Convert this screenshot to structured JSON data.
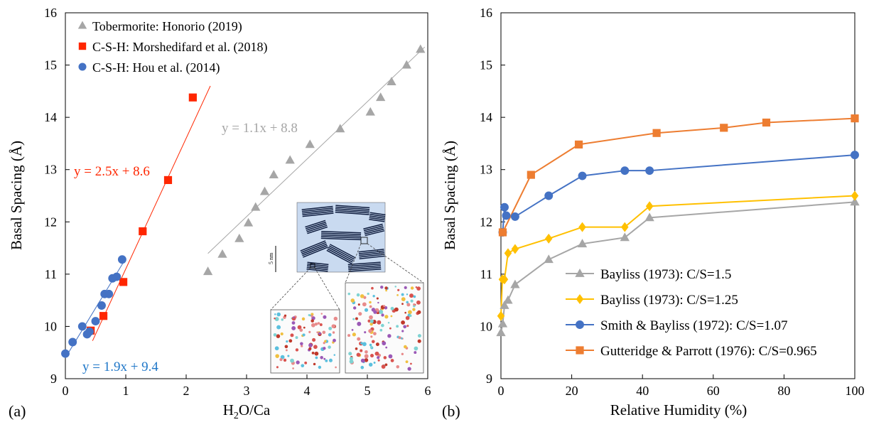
{
  "chart_data": [
    {
      "panel_label": "(a)",
      "type": "scatter",
      "xlabel_main": "H",
      "xlabel_sub": "2",
      "xlabel_rest": "O/Ca",
      "ylabel": "Basal Spacing (Å)",
      "xlim": [
        0,
        6
      ],
      "ylim": [
        9,
        16
      ],
      "xticks": [
        0,
        1,
        2,
        3,
        4,
        5,
        6
      ],
      "yticks": [
        9,
        10,
        11,
        12,
        13,
        14,
        15,
        16
      ],
      "grid": false,
      "legend_position": "top-left",
      "series": [
        {
          "name": "Tobermorite: Honorio (2019)",
          "marker": "triangle",
          "color": "#a6a6a6",
          "x": [
            2.36,
            2.6,
            2.88,
            3.03,
            3.15,
            3.3,
            3.45,
            3.72,
            4.05,
            4.55,
            5.05,
            5.22,
            5.4,
            5.65,
            5.88
          ],
          "y": [
            11.05,
            11.38,
            11.68,
            11.98,
            12.28,
            12.58,
            12.9,
            13.18,
            13.48,
            13.78,
            14.1,
            14.38,
            14.68,
            15.0,
            15.3
          ],
          "fit": {
            "label": "y = 1.1x + 8.8",
            "slope": 1.1,
            "intercept": 8.8,
            "x_range": [
              2.36,
              5.95
            ]
          }
        },
        {
          "name": "C-S-H: Morshedifard et al. (2018)",
          "marker": "square",
          "color": "#ff2600",
          "x": [
            0.42,
            0.63,
            0.96,
            1.28,
            1.7,
            2.11
          ],
          "y": [
            9.92,
            10.2,
            10.85,
            11.82,
            12.8,
            14.38
          ],
          "fit": {
            "label": "y = 2.5x + 8.6",
            "slope": 2.5,
            "intercept": 8.6,
            "x_range": [
              0.45,
              2.4
            ]
          }
        },
        {
          "name": "C-S-H: Hou et al. (2014)",
          "marker": "circle",
          "color": "#4472c4",
          "x": [
            0.0,
            0.12,
            0.28,
            0.36,
            0.4,
            0.5,
            0.6,
            0.65,
            0.72,
            0.78,
            0.85,
            0.94
          ],
          "y": [
            9.48,
            9.7,
            10.0,
            9.85,
            9.9,
            10.1,
            10.4,
            10.62,
            10.62,
            10.92,
            10.95,
            11.28
          ],
          "fit": {
            "label": "y = 1.9x + 9.4",
            "slope": 1.9,
            "intercept": 9.4,
            "x_range": [
              0.0,
              0.95
            ]
          }
        }
      ],
      "inset": {
        "scale_label": "5 nm"
      }
    },
    {
      "panel_label": "(b)",
      "type": "line",
      "xlabel": "Relative Humidity (%)",
      "ylabel": "Basal Spacing (Å)",
      "xlim": [
        0,
        100
      ],
      "ylim": [
        9,
        16
      ],
      "xticks": [
        0,
        20,
        40,
        60,
        80,
        100
      ],
      "yticks": [
        9,
        10,
        11,
        12,
        13,
        14,
        15,
        16
      ],
      "grid": false,
      "legend_position": "bottom-center",
      "series": [
        {
          "name": "Bayliss (1973): C/S=1.5",
          "marker": "triangle",
          "color": "#a6a6a6",
          "x": [
            0,
            0.5,
            1,
            2,
            4,
            13.5,
            23,
            35,
            42,
            100
          ],
          "y": [
            9.88,
            10.05,
            10.4,
            10.5,
            10.8,
            11.28,
            11.58,
            11.7,
            12.08,
            12.38
          ]
        },
        {
          "name": "Bayliss (1973): C/S=1.25",
          "marker": "diamond",
          "color": "#ffc000",
          "x": [
            0,
            0.4,
            1,
            2,
            4,
            13.5,
            23,
            35,
            42,
            100
          ],
          "y": [
            10.2,
            10.9,
            10.9,
            11.4,
            11.48,
            11.68,
            11.9,
            11.9,
            12.3,
            12.5
          ]
        },
        {
          "name": "Smith & Bayliss (1972): C/S=1.07",
          "marker": "circle",
          "color": "#4472c4",
          "x": [
            0.5,
            1,
            1.5,
            4,
            13.5,
            23,
            35,
            42,
            100
          ],
          "y": [
            11.8,
            12.28,
            12.12,
            12.1,
            12.5,
            12.88,
            12.98,
            12.98,
            13.28
          ]
        },
        {
          "name": "Gutteridge & Parrott (1976): C/S=0.965",
          "marker": "square",
          "color": "#ed7d31",
          "x": [
            0.5,
            8.5,
            22,
            44,
            63,
            75,
            100
          ],
          "y": [
            11.8,
            12.9,
            13.48,
            13.7,
            13.8,
            13.9,
            13.98
          ]
        }
      ]
    }
  ]
}
